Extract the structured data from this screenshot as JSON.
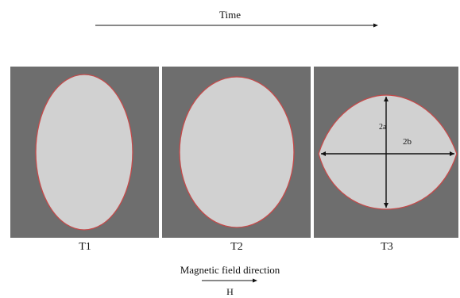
{
  "time_label": "Time",
  "panels": [
    {
      "label": "T1",
      "shape": "ellipse"
    },
    {
      "label": "T2",
      "shape": "ellipse"
    },
    {
      "label": "T3",
      "shape": "lens"
    }
  ],
  "dimension_labels": {
    "height": "2a",
    "width": "2b"
  },
  "field_label": "Magnetic field direction",
  "field_symbol": "H",
  "colors": {
    "panel": "#6e6e6e",
    "droplet": "#d1d1d1",
    "outline": "#c44a4a",
    "arrow": "#111111"
  }
}
